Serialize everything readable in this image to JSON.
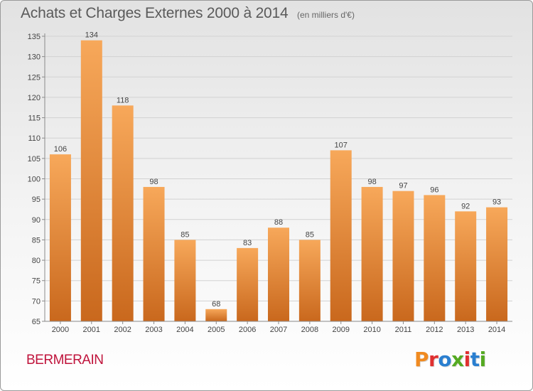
{
  "title": "Achats et Charges Externes 2000 à 2014",
  "subtitle": "(en milliers d'€)",
  "commune": "BERMERAIN",
  "logo": {
    "text": "Proxiti",
    "colors": [
      "#f08a20",
      "#e03030",
      "#2a7fd0",
      "#55aa22",
      "#e03030",
      "#2a7fd0",
      "#55aa22"
    ]
  },
  "colors": {
    "bar_light": "#f7a85a",
    "bar_dark": "#c9681d",
    "grid": "#d2d2d2",
    "axis": "#8a8a8a"
  },
  "chart_data": {
    "type": "bar",
    "title": "Achats et Charges Externes 2000 à 2014",
    "subtitle": "(en milliers d'€)",
    "xlabel": "",
    "ylabel": "",
    "categories": [
      "2000",
      "2001",
      "2002",
      "2003",
      "2004",
      "2005",
      "2006",
      "2007",
      "2008",
      "2009",
      "2010",
      "2011",
      "2012",
      "2013",
      "2014"
    ],
    "values": [
      106,
      134,
      118,
      98,
      85,
      68,
      83,
      88,
      85,
      107,
      98,
      97,
      96,
      92,
      93
    ],
    "ylim": [
      65,
      135
    ],
    "yticks": [
      65,
      70,
      75,
      80,
      85,
      90,
      95,
      100,
      105,
      110,
      115,
      120,
      125,
      130,
      135
    ],
    "grid": true,
    "legend": "none"
  }
}
